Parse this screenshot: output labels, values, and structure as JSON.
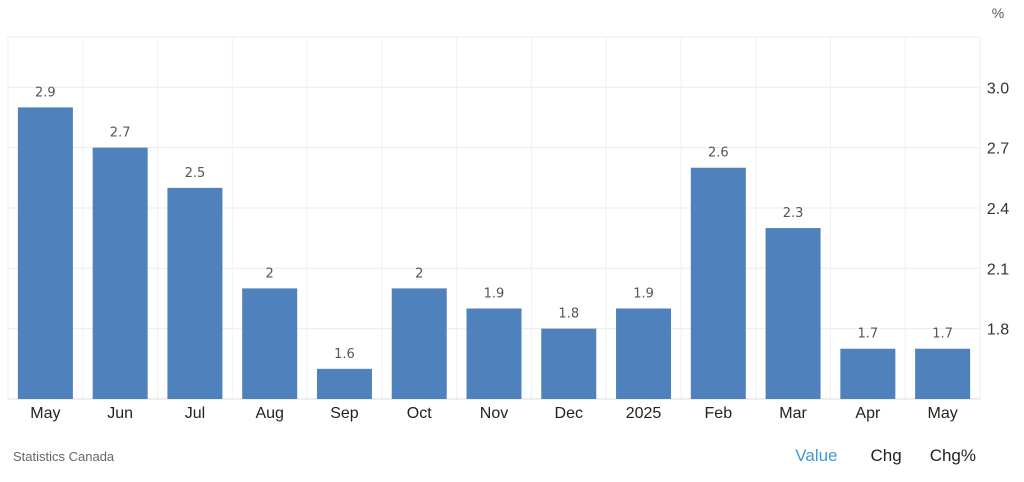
{
  "chart_data": {
    "type": "bar",
    "categories": [
      "May",
      "Jun",
      "Jul",
      "Aug",
      "Sep",
      "Oct",
      "Nov",
      "Dec",
      "2025",
      "Feb",
      "Mar",
      "Apr",
      "May"
    ],
    "values": [
      2.9,
      2.7,
      2.5,
      2.0,
      1.6,
      2.0,
      1.9,
      1.8,
      1.9,
      2.6,
      2.3,
      1.7,
      1.7
    ],
    "data_labels": [
      "2.9",
      "2.7",
      "2.5",
      "2",
      "1.6",
      "2",
      "1.9",
      "1.8",
      "1.9",
      "2.6",
      "2.3",
      "1.7",
      "1.7"
    ],
    "y_ticks": [
      "1.8",
      "2.1",
      "2.4",
      "2.7",
      "3.0"
    ],
    "y_tick_values": [
      1.8,
      2.1,
      2.4,
      2.7,
      3.0
    ],
    "ylim": [
      1.45,
      3.25
    ],
    "y_unit": "%",
    "y_axis_position": "right",
    "grid": true,
    "bar_color": "#4f81bd",
    "title": "",
    "xlabel": "",
    "ylabel": ""
  },
  "footer": {
    "source": "Statistics Canada",
    "tabs": [
      {
        "label": "Value",
        "active": true
      },
      {
        "label": "Chg",
        "active": false
      },
      {
        "label": "Chg%",
        "active": false
      }
    ],
    "active_color": "#3d9ad6"
  }
}
